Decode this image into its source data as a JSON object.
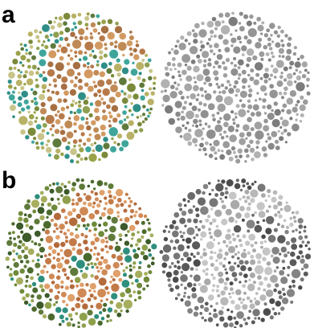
{
  "panels": [
    {
      "label": "a",
      "plates": [
        {
          "kind": "color",
          "digit": "6",
          "palette_bg": [
            "#7a8a3a",
            "#9aa24a",
            "#b9b266",
            "#5f7a3c",
            "#8fa050",
            "#3fa59a",
            "#2f8f88",
            "#c8c48a"
          ],
          "palette_fg": [
            "#c08a55",
            "#b67a4a",
            "#d29a62",
            "#a77042"
          ]
        },
        {
          "kind": "gray",
          "digit": "6",
          "palette_bg": [
            "#8a8a8a",
            "#9a9a9a",
            "#a6a6a6",
            "#7c7c7c",
            "#b2b2b2"
          ],
          "palette_fg": [
            "#959595",
            "#a0a0a0",
            "#8f8f8f"
          ]
        }
      ]
    },
    {
      "label": "b",
      "plates": [
        {
          "kind": "color",
          "digit": "6",
          "palette_bg": [
            "#4d6a2e",
            "#6f8a3a",
            "#8fa04c",
            "#3c5a2a",
            "#5f7a3a",
            "#2f8f7e",
            "#a6ae5e"
          ],
          "palette_fg": [
            "#d08a55",
            "#c27a48",
            "#e0a06a",
            "#b36b3c"
          ]
        },
        {
          "kind": "gray",
          "digit": "6",
          "palette_bg": [
            "#5a5a5a",
            "#6a6a6a",
            "#777777",
            "#4c4c4c",
            "#848484"
          ],
          "palette_fg": [
            "#b8b8b8",
            "#c6c6c6",
            "#a9a9a9"
          ]
        }
      ]
    }
  ]
}
